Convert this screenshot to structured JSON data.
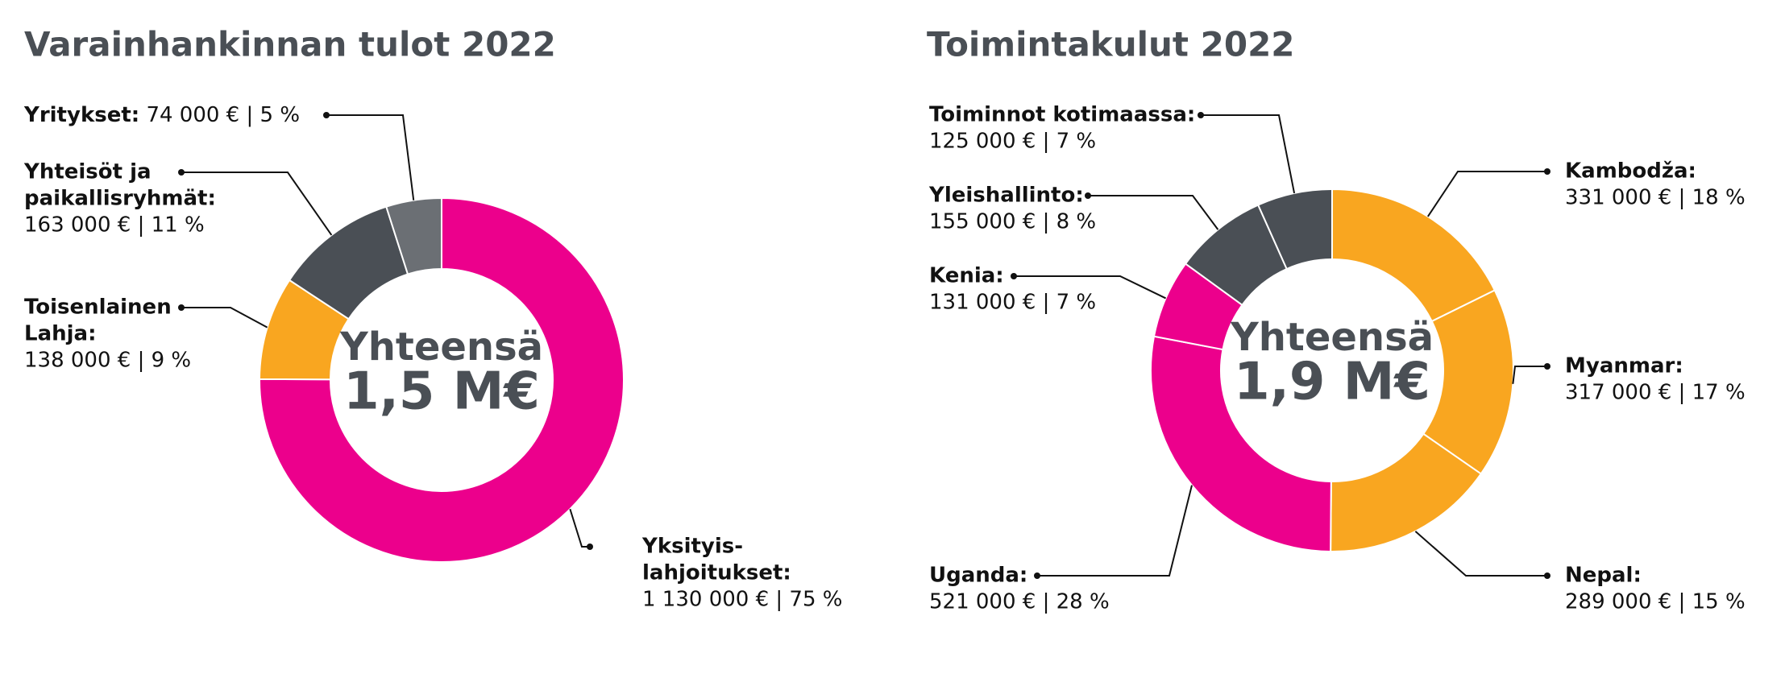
{
  "chart_data": [
    {
      "type": "pie",
      "title": "Varainhankinnan tulot 2022",
      "center_label": "Yhteensä",
      "total_label": "1,5 M€",
      "categories": [
        [
          "Yksityis-",
          "lahjoitukset:"
        ],
        [
          "Toisenlainen",
          "Lahja:"
        ],
        [
          "Yhteisöt ja",
          "paikallisryhmät:"
        ],
        [
          "Yritykset:"
        ]
      ],
      "values": [
        1130000,
        138000,
        163000,
        74000
      ],
      "value_labels": [
        "1 130 000 € | 75 %",
        "138 000 € | 9 %",
        "163 000 € | 11 %",
        "74 000 € | 5 %"
      ],
      "colors": [
        "#ec008c",
        "#f9a620",
        "#4a4f55",
        "#6b6f74"
      ]
    },
    {
      "type": "pie",
      "title": "Toimintakulut 2022",
      "center_label": "Yhteensä",
      "total_label": "1,9 M€",
      "categories": [
        [
          "Kambodža:"
        ],
        [
          "Myanmar:"
        ],
        [
          "Nepal:"
        ],
        [
          "Uganda:"
        ],
        [
          "Kenia:"
        ],
        [
          "Yleishallinto:"
        ],
        [
          "Toiminnot kotimaassa:"
        ]
      ],
      "values": [
        331000,
        317000,
        289000,
        521000,
        131000,
        155000,
        125000
      ],
      "value_labels": [
        "331 000 € | 18 %",
        "317 000 € | 17 %",
        "289 000 € | 15 %",
        "521 000 € | 28 %",
        "131 000 € | 7 %",
        "155 000 € | 8 %",
        "125 000 € | 7 %"
      ],
      "colors": [
        "#f9a620",
        "#f9a620",
        "#f9a620",
        "#ec008c",
        "#ec008c",
        "#4a4f55",
        "#4a4f55"
      ]
    }
  ]
}
